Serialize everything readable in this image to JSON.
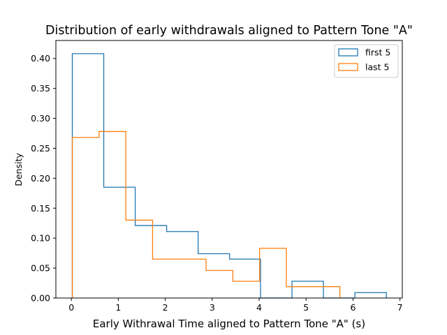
{
  "chart_data": {
    "type": "histogram",
    "title": "Distribution of early withdrawals aligned to Pattern Tone \"A\"",
    "xlabel": "Early Withrawal Time aligned to Pattern Tone \"A\" (s)",
    "ylabel": "Density",
    "xlim": [
      -0.33,
      7.05
    ],
    "ylim": [
      0,
      0.43
    ],
    "x_ticks": [
      0,
      1,
      2,
      3,
      4,
      5,
      6,
      7
    ],
    "x_tick_labels": [
      "0",
      "1",
      "2",
      "3",
      "4",
      "5",
      "6",
      "7"
    ],
    "y_ticks": [
      0.0,
      0.05,
      0.1,
      0.15,
      0.2,
      0.25,
      0.3,
      0.35,
      0.4
    ],
    "y_tick_labels": [
      "0.00",
      "0.05",
      "0.10",
      "0.15",
      "0.20",
      "0.25",
      "0.30",
      "0.35",
      "0.40"
    ],
    "grid": false,
    "legend": {
      "placement": "top-right"
    },
    "series": [
      {
        "name": "first 5",
        "color": "#1f77b4",
        "bin_edges": [
          0.02,
          0.69,
          1.36,
          2.03,
          2.7,
          3.37,
          4.03,
          4.7,
          5.37,
          6.04,
          6.71
        ],
        "values": [
          0.408,
          0.185,
          0.121,
          0.111,
          0.074,
          0.065,
          0.0,
          0.028,
          0.0,
          0.009
        ]
      },
      {
        "name": "last 5",
        "color": "#ff7f0e",
        "bin_edges": [
          0.02,
          0.59,
          1.16,
          1.73,
          2.3,
          2.87,
          3.44,
          4.01,
          4.58,
          5.15,
          5.72
        ],
        "values": [
          0.268,
          0.278,
          0.13,
          0.065,
          0.065,
          0.046,
          0.028,
          0.083,
          0.019,
          0.019
        ]
      }
    ]
  }
}
